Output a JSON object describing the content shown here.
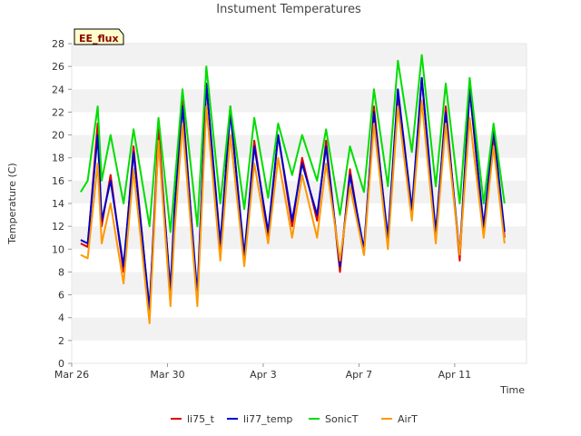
{
  "chart_data": {
    "type": "line",
    "title": "Instument Temperatures",
    "badge": "EE_flux",
    "xlabel": "Time",
    "ylabel": "Temperature (C)",
    "ylim": [
      0,
      28
    ],
    "yticks": [
      0,
      2,
      4,
      6,
      8,
      10,
      12,
      14,
      16,
      18,
      20,
      22,
      24,
      26,
      28
    ],
    "xlim": [
      "2024-03-26",
      "2024-04-14"
    ],
    "xticks": [
      {
        "date": "2024-03-26",
        "label": "Mar 26"
      },
      {
        "date": "2024-03-30",
        "label": "Mar 30"
      },
      {
        "date": "2024-04-03",
        "label": "Apr 3"
      },
      {
        "date": "2024-04-07",
        "label": "Apr 7"
      },
      {
        "date": "2024-04-11",
        "label": "Apr 11"
      }
    ],
    "grid": "horizontal bands",
    "legend_position": "bottom",
    "series": [
      {
        "name": "li75_t",
        "color": "#dd0000",
        "x": [
          "2024-03-26T09:00",
          "2024-03-26T16:00",
          "2024-03-27T02:00",
          "2024-03-27T06:00",
          "2024-03-27T15:00",
          "2024-03-28T04:00",
          "2024-03-28T14:00",
          "2024-03-29T06:00",
          "2024-03-29T15:00",
          "2024-03-30T03:00",
          "2024-03-30T07:00",
          "2024-03-30T15:00",
          "2024-03-31T06:00",
          "2024-03-31T15:00",
          "2024-04-01T05:00",
          "2024-04-01T15:00",
          "2024-04-02T05:00",
          "2024-04-02T15:00",
          "2024-04-03T05:00",
          "2024-04-03T15:00",
          "2024-04-04T05:00",
          "2024-04-04T15:00",
          "2024-04-05T06:00",
          "2024-04-05T15:00",
          "2024-04-06T05:00",
          "2024-04-06T15:00",
          "2024-04-07T05:00",
          "2024-04-07T15:00",
          "2024-04-08T05:00",
          "2024-04-08T15:00",
          "2024-04-09T05:00",
          "2024-04-09T15:00",
          "2024-04-10T05:00",
          "2024-04-10T15:00",
          "2024-04-11T05:00",
          "2024-04-11T15:00",
          "2024-04-12T05:00",
          "2024-04-12T15:00",
          "2024-04-13T02:00"
        ],
        "y": [
          10.5,
          10.2,
          21.0,
          12.0,
          16.5,
          8.0,
          19.0,
          4.5,
          20.5,
          6.0,
          13.0,
          23.0,
          5.5,
          24.5,
          10.0,
          22.5,
          9.0,
          19.5,
          11.0,
          20.0,
          12.0,
          18.0,
          12.5,
          19.5,
          8.0,
          17.0,
          9.5,
          22.5,
          10.5,
          23.5,
          13.0,
          25.0,
          11.0,
          22.5,
          9.0,
          24.0,
          11.5,
          20.0,
          11.0
        ]
      },
      {
        "name": "li77_temp",
        "color": "#0000cc",
        "x": [
          "2024-03-26T09:00",
          "2024-03-26T16:00",
          "2024-03-27T02:00",
          "2024-03-27T06:00",
          "2024-03-27T15:00",
          "2024-03-28T04:00",
          "2024-03-28T14:00",
          "2024-03-29T06:00",
          "2024-03-29T15:00",
          "2024-03-30T03:00",
          "2024-03-30T07:00",
          "2024-03-30T15:00",
          "2024-03-31T06:00",
          "2024-03-31T15:00",
          "2024-04-01T05:00",
          "2024-04-01T15:00",
          "2024-04-02T05:00",
          "2024-04-02T15:00",
          "2024-04-03T05:00",
          "2024-04-03T15:00",
          "2024-04-04T05:00",
          "2024-04-04T15:00",
          "2024-04-05T06:00",
          "2024-04-05T15:00",
          "2024-04-06T05:00",
          "2024-04-06T15:00",
          "2024-04-07T05:00",
          "2024-04-07T15:00",
          "2024-04-08T05:00",
          "2024-04-08T15:00",
          "2024-04-09T05:00",
          "2024-04-09T15:00",
          "2024-04-10T05:00",
          "2024-04-10T15:00",
          "2024-04-11T05:00",
          "2024-04-11T15:00",
          "2024-04-12T05:00",
          "2024-04-12T15:00",
          "2024-04-13T02:00"
        ],
        "y": [
          10.8,
          10.5,
          20.0,
          12.5,
          16.0,
          8.5,
          18.5,
          4.8,
          19.5,
          6.5,
          13.5,
          22.5,
          6.0,
          24.5,
          10.5,
          22.0,
          9.5,
          19.0,
          11.5,
          20.0,
          12.5,
          17.5,
          13.0,
          19.0,
          8.5,
          16.5,
          10.0,
          22.0,
          11.0,
          24.0,
          13.5,
          25.0,
          11.5,
          22.0,
          9.5,
          24.0,
          12.0,
          20.5,
          11.5
        ]
      },
      {
        "name": "SonicT",
        "color": "#00dd00",
        "x": [
          "2024-03-26T09:00",
          "2024-03-26T16:00",
          "2024-03-27T02:00",
          "2024-03-27T06:00",
          "2024-03-27T15:00",
          "2024-03-28T04:00",
          "2024-03-28T14:00",
          "2024-03-29T06:00",
          "2024-03-29T15:00",
          "2024-03-30T03:00",
          "2024-03-30T07:00",
          "2024-03-30T15:00",
          "2024-03-31T06:00",
          "2024-03-31T15:00",
          "2024-04-01T05:00",
          "2024-04-01T15:00",
          "2024-04-02T05:00",
          "2024-04-02T15:00",
          "2024-04-03T05:00",
          "2024-04-03T15:00",
          "2024-04-04T05:00",
          "2024-04-04T15:00",
          "2024-04-05T06:00",
          "2024-04-05T15:00",
          "2024-04-06T05:00",
          "2024-04-06T15:00",
          "2024-04-07T05:00",
          "2024-04-07T15:00",
          "2024-04-08T05:00",
          "2024-04-08T15:00",
          "2024-04-09T05:00",
          "2024-04-09T15:00",
          "2024-04-10T05:00",
          "2024-04-10T15:00",
          "2024-04-11T05:00",
          "2024-04-11T15:00",
          "2024-04-12T05:00",
          "2024-04-12T15:00",
          "2024-04-13T02:00"
        ],
        "y": [
          15.0,
          16.0,
          22.5,
          16.0,
          20.0,
          14.0,
          20.5,
          12.0,
          21.5,
          11.5,
          15.5,
          24.0,
          12.0,
          26.0,
          14.0,
          22.5,
          13.5,
          21.5,
          14.5,
          21.0,
          16.5,
          20.0,
          16.0,
          20.5,
          13.0,
          19.0,
          15.0,
          24.0,
          15.5,
          26.5,
          18.5,
          27.0,
          15.5,
          24.5,
          14.0,
          25.0,
          14.0,
          21.0,
          14.0
        ]
      },
      {
        "name": "AirT",
        "color": "#ff9900",
        "x": [
          "2024-03-26T09:00",
          "2024-03-26T16:00",
          "2024-03-27T02:00",
          "2024-03-27T06:00",
          "2024-03-27T15:00",
          "2024-03-28T04:00",
          "2024-03-28T14:00",
          "2024-03-29T06:00",
          "2024-03-29T15:00",
          "2024-03-30T03:00",
          "2024-03-30T07:00",
          "2024-03-30T15:00",
          "2024-03-31T06:00",
          "2024-03-31T15:00",
          "2024-04-01T05:00",
          "2024-04-01T15:00",
          "2024-04-02T05:00",
          "2024-04-02T15:00",
          "2024-04-03T05:00",
          "2024-04-03T15:00",
          "2024-04-04T05:00",
          "2024-04-04T15:00",
          "2024-04-05T06:00",
          "2024-04-05T15:00",
          "2024-04-06T05:00",
          "2024-04-06T15:00",
          "2024-04-07T05:00",
          "2024-04-07T15:00",
          "2024-04-08T05:00",
          "2024-04-08T15:00",
          "2024-04-09T05:00",
          "2024-04-09T15:00",
          "2024-04-10T05:00",
          "2024-04-10T15:00",
          "2024-04-11T05:00",
          "2024-04-11T15:00",
          "2024-04-12T05:00",
          "2024-04-12T15:00",
          "2024-04-13T02:00"
        ],
        "y": [
          9.5,
          9.2,
          17.5,
          10.5,
          14.0,
          7.0,
          17.0,
          3.5,
          19.5,
          5.0,
          11.5,
          21.0,
          5.0,
          22.5,
          9.0,
          20.0,
          8.5,
          17.5,
          10.5,
          18.0,
          11.0,
          16.5,
          11.0,
          17.5,
          9.0,
          15.5,
          9.5,
          21.0,
          10.0,
          22.5,
          12.5,
          23.0,
          10.5,
          21.0,
          9.5,
          21.5,
          11.0,
          19.0,
          10.5
        ]
      }
    ]
  }
}
